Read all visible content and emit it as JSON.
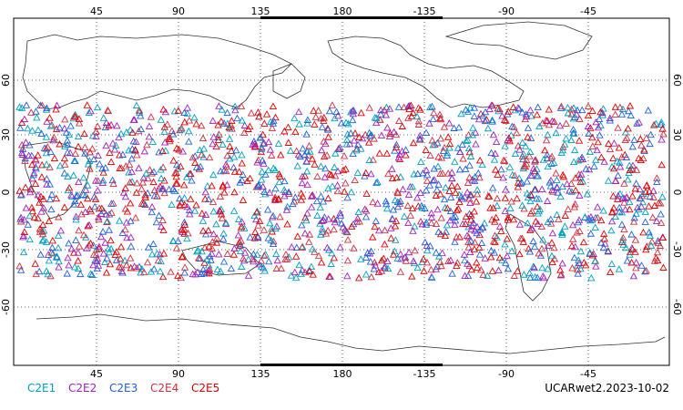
{
  "map": {
    "top_lon_ticks": [
      "45",
      "90",
      "135",
      "180",
      "-135",
      "-90",
      "-45"
    ],
    "bottom_lon_ticks": [
      "45",
      "90",
      "135",
      "180",
      "-135",
      "-90",
      "-45"
    ],
    "left_lat_ticks": [
      "60",
      "30",
      "0",
      "-30",
      "-60"
    ],
    "right_lat_ticks": [
      "60",
      "30",
      "0",
      "-30",
      "-60"
    ],
    "grid": "dotted",
    "marker": "open-triangle",
    "observation_band_lat": [
      -45,
      45
    ],
    "legend": [
      {
        "label": "C2E1",
        "color": "#00a0c0"
      },
      {
        "label": "C2E2",
        "color": "#a020c0"
      },
      {
        "label": "C2E3",
        "color": "#2060e0"
      },
      {
        "label": "C2E4",
        "color": "#d03040"
      },
      {
        "label": "C2E5",
        "color": "#e00000"
      }
    ],
    "caption": "UCARwet2.2023-10-02"
  }
}
